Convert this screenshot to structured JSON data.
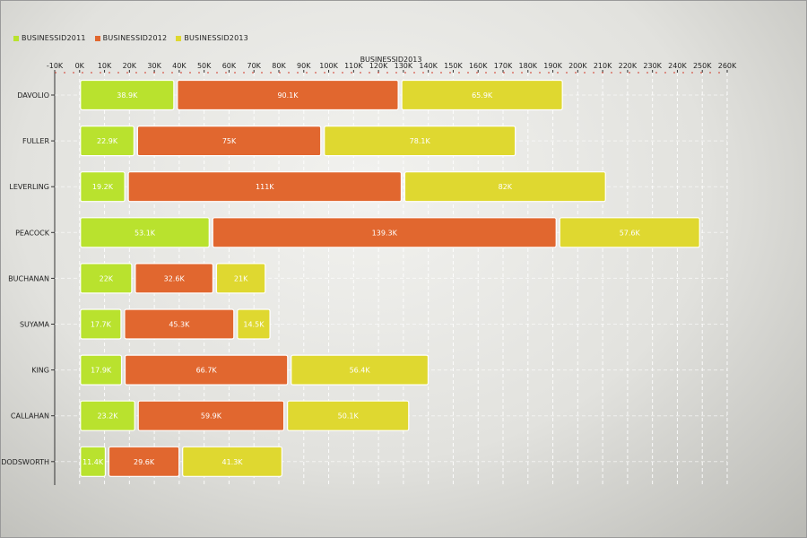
{
  "chart_data": {
    "type": "bar",
    "orientation": "horizontal",
    "x_axis_title": "BUSINESSID2013",
    "xlim": [
      -10000,
      260000
    ],
    "x_ticks": [
      -10000,
      0,
      10000,
      20000,
      30000,
      40000,
      50000,
      60000,
      70000,
      80000,
      90000,
      100000,
      110000,
      120000,
      130000,
      140000,
      150000,
      160000,
      170000,
      180000,
      190000,
      200000,
      210000,
      220000,
      230000,
      240000,
      250000,
      260000
    ],
    "x_tick_labels": [
      "-10K",
      "0K",
      "10K",
      "20K",
      "30K",
      "40K",
      "50K",
      "60K",
      "70K",
      "80K",
      "90K",
      "100K",
      "110K",
      "120K",
      "130K",
      "140K",
      "150K",
      "160K",
      "170K",
      "180K",
      "190K",
      "200K",
      "210K",
      "220K",
      "230K",
      "240K",
      "250K",
      "260K"
    ],
    "categories": [
      "DAVOLIO",
      "FULLER",
      "LEVERLING",
      "PEACOCK",
      "BUCHANAN",
      "SUYAMA",
      "KING",
      "CALLAHAN",
      "DODSWORTH"
    ],
    "stacked": true,
    "grid": true,
    "legend_position": "top-left",
    "series": [
      {
        "name": "BUSINESSID2011",
        "color": "#b9e22e",
        "values": [
          38900,
          22900,
          19200,
          53100,
          22000,
          17700,
          17900,
          23200,
          11400
        ],
        "labels": [
          "38.9K",
          "22.9K",
          "19.2K",
          "53.1K",
          "22K",
          "17.7K",
          "17.9K",
          "23.2K",
          "11.4K"
        ]
      },
      {
        "name": "BUSINESSID2012",
        "color": "#e1672f",
        "values": [
          90100,
          75000,
          111000,
          139300,
          32600,
          45300,
          66700,
          59900,
          29600
        ],
        "labels": [
          "90.1K",
          "75K",
          "111K",
          "139.3K",
          "32.6K",
          "45.3K",
          "66.7K",
          "59.9K",
          "29.6K"
        ]
      },
      {
        "name": "BUSINESSID2013",
        "color": "#dfd830",
        "values": [
          65900,
          78100,
          82000,
          57600,
          21000,
          14500,
          56400,
          50100,
          41300
        ],
        "labels": [
          "65.9K",
          "78.1K",
          "82K",
          "57.6K",
          "21K",
          "14.5K",
          "56.4K",
          "50.1K",
          "41.3K"
        ]
      }
    ]
  }
}
